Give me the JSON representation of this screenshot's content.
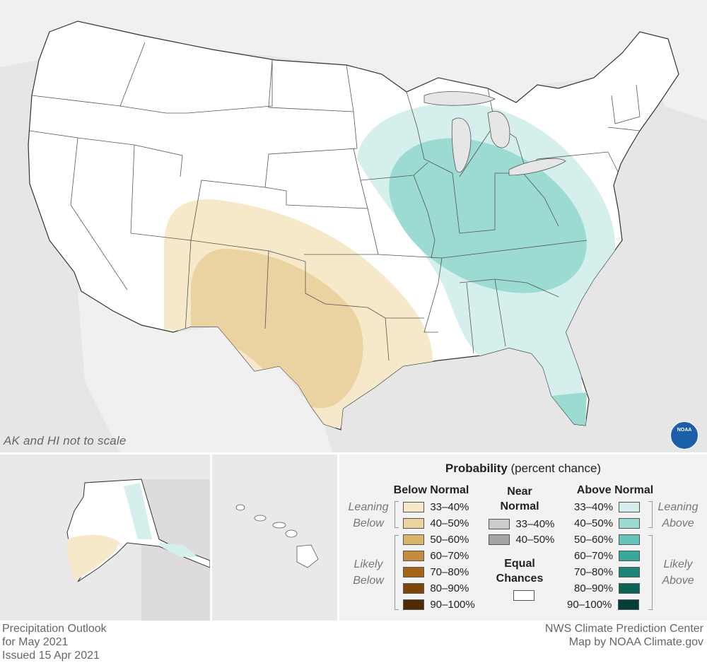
{
  "map": {
    "note": "AK and HI not to scale",
    "logo_text": "NOAA"
  },
  "legend": {
    "title_bold": "Probability",
    "title_rest": " (percent chance)",
    "below": {
      "heading": "Below Normal",
      "leaning_label": [
        "Leaning",
        "Below"
      ],
      "likely_label": [
        "Likely",
        "Below"
      ],
      "rows": [
        {
          "label": "33–40%",
          "color": "#f5e9c9"
        },
        {
          "label": "40–50%",
          "color": "#ead3a0"
        },
        {
          "label": "50–60%",
          "color": "#d9b56b"
        },
        {
          "label": "60–70%",
          "color": "#c38d3d"
        },
        {
          "label": "70–80%",
          "color": "#a36416"
        },
        {
          "label": "80–90%",
          "color": "#7c4609"
        },
        {
          "label": "90–100%",
          "color": "#4e2a05"
        }
      ]
    },
    "near": {
      "heading": [
        "Near",
        "Normal"
      ],
      "rows": [
        {
          "label": "33–40%",
          "color": "#cccccc"
        },
        {
          "label": "40–50%",
          "color": "#a5a5a5"
        }
      ],
      "equal_heading": [
        "Equal",
        "Chances"
      ],
      "equal_color": "#ffffff"
    },
    "above": {
      "heading": "Above Normal",
      "leaning_label": [
        "Leaning",
        "Above"
      ],
      "likely_label": [
        "Likely",
        "Above"
      ],
      "rows": [
        {
          "label": "33–40%",
          "color": "#d5efec"
        },
        {
          "label": "40–50%",
          "color": "#9bdbd2"
        },
        {
          "label": "50–60%",
          "color": "#66c4b8"
        },
        {
          "label": "60–70%",
          "color": "#38a89b"
        },
        {
          "label": "70–80%",
          "color": "#1d8577"
        },
        {
          "label": "80–90%",
          "color": "#0c6254"
        },
        {
          "label": "90–100%",
          "color": "#043f35"
        }
      ]
    }
  },
  "footer": {
    "left": [
      "Precipitation Outlook",
      "for May 2021",
      "Issued 15 Apr 2021"
    ],
    "right": [
      "NWS Climate Prediction Center",
      "Map by NOAA Climate.gov"
    ]
  }
}
